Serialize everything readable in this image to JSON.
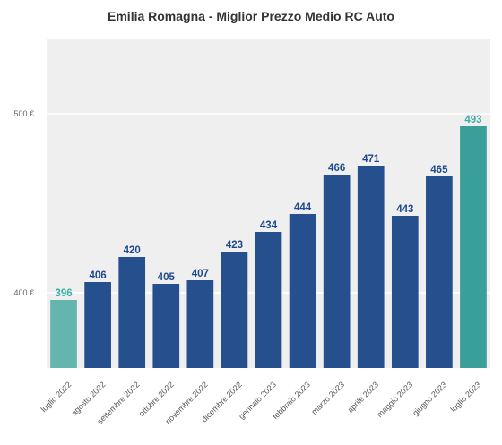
{
  "chart_data": {
    "type": "bar",
    "title": "Emilia Romagna - Miglior Prezzo Medio RC Auto",
    "categories": [
      "luglio 2022",
      "agosto 2022",
      "settembre 2022",
      "ottobre 2022",
      "novembre 2022",
      "dicembre 2022",
      "gennaio 2023",
      "febbraio 2023",
      "marzo 2023",
      "aprile 2023",
      "maggio 2023",
      "giugno 2023",
      "luglio 2023"
    ],
    "values": [
      396,
      406,
      420,
      405,
      407,
      423,
      434,
      444,
      466,
      471,
      443,
      465,
      493
    ],
    "ylim": [
      358,
      542
    ],
    "yticks": [
      400,
      500
    ],
    "ytick_labels": [
      "400 €",
      "500 €"
    ],
    "grid": true,
    "colors": {
      "default": "#264f8d",
      "first": "#63b5ad",
      "last": "#3a9e99",
      "label_default": "#1e4a8c",
      "label_highlight": "#3aaea6",
      "plot_bg": "#efefef"
    }
  }
}
